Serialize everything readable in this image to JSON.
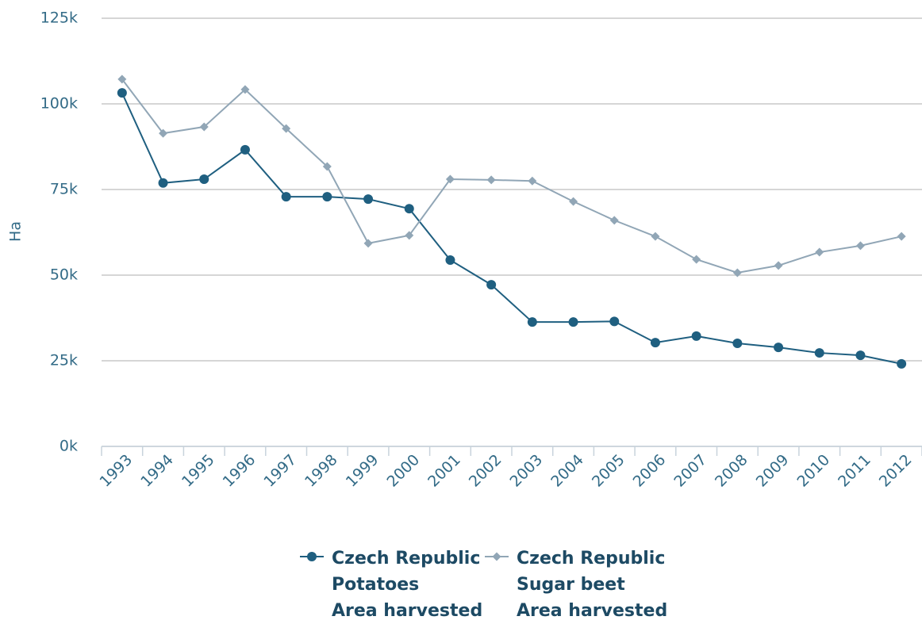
{
  "chart_data": {
    "type": "line",
    "y_label": "Ha",
    "categories": [
      "1993",
      "1994",
      "1995",
      "1996",
      "1997",
      "1998",
      "1999",
      "2000",
      "2001",
      "2002",
      "2003",
      "2004",
      "2005",
      "2006",
      "2007",
      "2008",
      "2009",
      "2010",
      "2011",
      "2012"
    ],
    "series": [
      {
        "name": "Czech Republic\nPotatoes\nArea harvested",
        "color": "#1f5f80",
        "marker": "circle",
        "values": [
          103200,
          76900,
          78000,
          86600,
          72900,
          72900,
          72200,
          69400,
          54400,
          47200,
          36300,
          36300,
          36500,
          30300,
          32200,
          30100,
          28900,
          27300,
          26600,
          24100
        ]
      },
      {
        "name": "Czech Republic\nSugar beet\nArea harvested",
        "color": "#91a6b6",
        "marker": "diamond",
        "values": [
          107200,
          91400,
          93300,
          104200,
          92800,
          81700,
          59300,
          61600,
          78000,
          77800,
          77500,
          71500,
          66000,
          61300,
          54600,
          50700,
          52800,
          56700,
          58600,
          61300
        ]
      }
    ],
    "ylim": [
      0,
      125000
    ],
    "yticks": [
      {
        "value": 0,
        "label": "0k"
      },
      {
        "value": 25000,
        "label": "25k"
      },
      {
        "value": 50000,
        "label": "50k"
      },
      {
        "value": 75000,
        "label": "75k"
      },
      {
        "value": 100000,
        "label": "100k"
      },
      {
        "value": 125000,
        "label": "125k"
      }
    ],
    "grid": true
  }
}
